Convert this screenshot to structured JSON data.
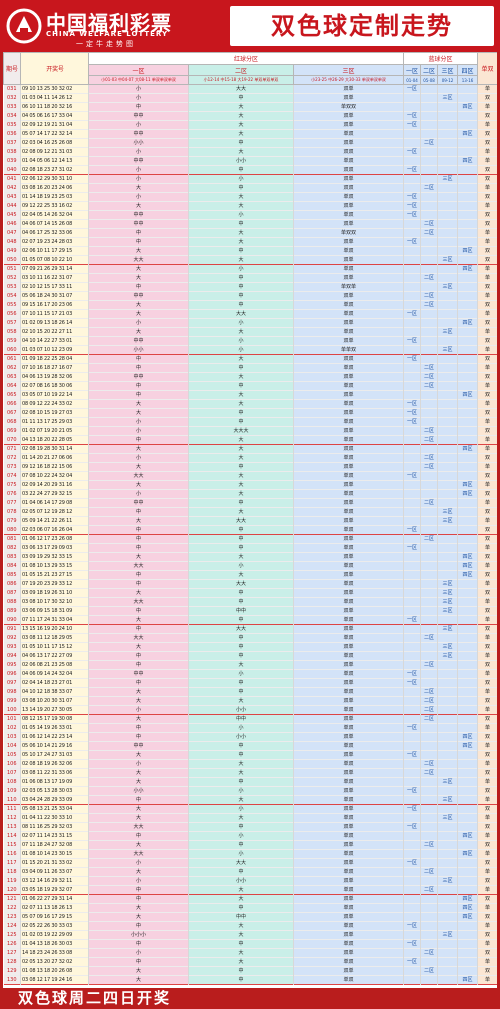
{
  "brand": {
    "name": "中国福利彩票",
    "en": "CHINA WELFARE LOTTERY",
    "slogan": "一定牛走势图"
  },
  "title": "双色球定制走势",
  "table": {
    "col_period": "期号",
    "col_draw": "开奖号",
    "red_group": "红球分区",
    "blue_group": "蓝球分区",
    "zone1": "一区",
    "zone2": "二区",
    "zone3": "三区",
    "oe": "单双",
    "sub1": "小01-03 中04-07 大08-11 单双单双单双",
    "sub2": "小12-14 中15-18 大19-22 单双单双单双",
    "sub3": "小23-25 中26-29 大30-33 单双单双单双",
    "blue_zones": [
      "一区",
      "二区",
      "三区",
      "四区"
    ],
    "blue_ranges": [
      "01-04",
      "05-08",
      "09-12",
      "13-16"
    ],
    "rows": [
      {
        "p": "031",
        "d": "09 10 13 25 30 32 02",
        "z1": "小",
        "z2": "大大",
        "z3": "双单",
        "b": "单"
      },
      {
        "p": "032",
        "d": "01 03 04 11 14 26 12",
        "z1": "小",
        "z2": "中",
        "z3": "双单",
        "b": "双"
      },
      {
        "p": "033",
        "d": "06 10 11 18 20 32 16",
        "z1": "中",
        "z2": "大",
        "z3": "单双双",
        "b": "单"
      },
      {
        "p": "034",
        "d": "04 05 06 16 17 33 04",
        "z1": "中中",
        "z2": "大",
        "z3": "双单",
        "b": "双"
      },
      {
        "p": "035",
        "d": "02 09 12 19 21 31 04",
        "z1": "小",
        "z2": "大",
        "z3": "双单",
        "b": "单"
      },
      {
        "p": "036",
        "d": "05 07 14 17 22 32 14",
        "z1": "中中",
        "z2": "大",
        "z3": "单双",
        "b": "双"
      },
      {
        "p": "037",
        "d": "02 03 04 16 25 26 08",
        "z1": "小小",
        "z2": "中",
        "z3": "双单",
        "b": "双"
      },
      {
        "p": "038",
        "d": "02 08 09 12 21 31 03",
        "z1": "小",
        "z2": "大",
        "z3": "双双",
        "b": "单"
      },
      {
        "p": "039",
        "d": "01 04 05 06 12 14 13",
        "z1": "中中",
        "z2": "小小",
        "z3": "单双",
        "b": "单"
      },
      {
        "p": "040",
        "d": "02 08 18 23 27 31 02",
        "z1": "小",
        "z2": "中",
        "z3": "双双",
        "b": "双"
      },
      {
        "p": "041",
        "d": "02 06 12 29 30 31 10",
        "z1": "小",
        "z2": "小",
        "z3": "双单",
        "b": "双"
      },
      {
        "p": "042",
        "d": "03 08 16 20 23 24 06",
        "z1": "大",
        "z2": "中",
        "z3": "双双",
        "b": "单"
      },
      {
        "p": "043",
        "d": "01 14 18 19 23 25 03",
        "z1": "小",
        "z2": "大",
        "z3": "单双",
        "b": "双"
      },
      {
        "p": "044",
        "d": "09 12 22 25 33 16 02",
        "z1": "大",
        "z2": "大",
        "z3": "双单",
        "b": "单"
      },
      {
        "p": "045",
        "d": "02 04 05 14 26 32 04",
        "z1": "中中",
        "z2": "小",
        "z3": "单双",
        "b": "双"
      },
      {
        "p": "046",
        "d": "04 06 07 14 15 26 08",
        "z1": "中中",
        "z2": "中",
        "z3": "双单",
        "b": "双"
      },
      {
        "p": "047",
        "d": "04 06 17 25 32 33 06",
        "z1": "中",
        "z2": "大",
        "z3": "单双双",
        "b": "单"
      },
      {
        "p": "048",
        "d": "02 07 19 23 24 28 03",
        "z1": "中",
        "z2": "大",
        "z3": "双单",
        "b": "单"
      },
      {
        "p": "049",
        "d": "02 06 10 11 17 29 15",
        "z1": "大",
        "z2": "中",
        "z3": "单双",
        "b": "双"
      },
      {
        "p": "050",
        "d": "01 05 07 08 10 22 10",
        "z1": "大大",
        "z2": "大",
        "z3": "双单",
        "b": "双"
      },
      {
        "p": "051",
        "d": "07 09 21 26 29 31 14",
        "z1": "大",
        "z2": "小",
        "z3": "单双",
        "b": "单"
      },
      {
        "p": "052",
        "d": "03 10 11 16 22 31 07",
        "z1": "大",
        "z2": "中",
        "z3": "双单",
        "b": "单"
      },
      {
        "p": "053",
        "d": "02 10 12 15 17 33 11",
        "z1": "中",
        "z2": "中",
        "z3": "单双单",
        "b": "双"
      },
      {
        "p": "054",
        "d": "05 06 18 24 30 31 07",
        "z1": "中中",
        "z2": "中",
        "z3": "双单",
        "b": "单"
      },
      {
        "p": "055",
        "d": "09 15 16 17 20 23 06",
        "z1": "大",
        "z2": "中",
        "z3": "单双",
        "b": "双"
      },
      {
        "p": "056",
        "d": "07 10 11 15 17 21 03",
        "z1": "大",
        "z2": "大大",
        "z3": "单双",
        "b": "单"
      },
      {
        "p": "057",
        "d": "01 02 09 13 18 26 14",
        "z1": "小",
        "z2": "小",
        "z3": "双单",
        "b": "双"
      },
      {
        "p": "058",
        "d": "02 10 15 20 22 27 11",
        "z1": "大",
        "z2": "大",
        "z3": "单双",
        "b": "单"
      },
      {
        "p": "059",
        "d": "04 10 14 22 27 33 01",
        "z1": "中中",
        "z2": "小",
        "z3": "双单",
        "b": "双"
      },
      {
        "p": "060",
        "d": "01 03 07 10 12 23 09",
        "z1": "小小",
        "z2": "小",
        "z3": "单单双",
        "b": "单"
      },
      {
        "p": "061",
        "d": "01 09 18 22 25 28 04",
        "z1": "中",
        "z2": "大",
        "z3": "双双",
        "b": "双"
      },
      {
        "p": "062",
        "d": "07 10 16 18 27 16 07",
        "z1": "中",
        "z2": "中",
        "z3": "单双",
        "b": "单"
      },
      {
        "p": "063",
        "d": "04 06 13 19 28 32 06",
        "z1": "中中",
        "z2": "大",
        "z3": "双单",
        "b": "双"
      },
      {
        "p": "064",
        "d": "02 07 08 16 18 30 06",
        "z1": "中",
        "z2": "中",
        "z3": "单双",
        "b": "单"
      },
      {
        "p": "065",
        "d": "03 05 07 10 19 22 14",
        "z1": "中",
        "z2": "大",
        "z3": "双单",
        "b": "双"
      },
      {
        "p": "066",
        "d": "08 09 12 22 24 33 02",
        "z1": "大",
        "z2": "大",
        "z3": "单双",
        "b": "单"
      },
      {
        "p": "067",
        "d": "02 08 10 15 19 27 03",
        "z1": "大",
        "z2": "中",
        "z3": "双单",
        "b": "双"
      },
      {
        "p": "068",
        "d": "01 11 13 17 25 29 03",
        "z1": "小",
        "z2": "中",
        "z3": "单双",
        "b": "单"
      },
      {
        "p": "069",
        "d": "01 02 07 19 20 21 05",
        "z1": "小",
        "z2": "大大大",
        "z3": "双单",
        "b": "双"
      },
      {
        "p": "070",
        "d": "04 13 18 20 22 28 05",
        "z1": "中",
        "z2": "大",
        "z3": "单双",
        "b": "单"
      },
      {
        "p": "071",
        "d": "02 08 19 28 30 31 14",
        "z1": "大",
        "z2": "大",
        "z3": "双双",
        "b": "单"
      },
      {
        "p": "072",
        "d": "01 14 20 21 27 06 06",
        "z1": "小",
        "z2": "大",
        "z3": "单双",
        "b": "双"
      },
      {
        "p": "073",
        "d": "09 12 16 18 22 15 06",
        "z1": "大",
        "z2": "中",
        "z3": "双单",
        "b": "单"
      },
      {
        "p": "074",
        "d": "07 08 10 22 24 32 04",
        "z1": "大大",
        "z2": "大",
        "z3": "单双",
        "b": "双"
      },
      {
        "p": "075",
        "d": "02 09 14 20 29 31 16",
        "z1": "大",
        "z2": "大",
        "z3": "双单",
        "b": "单"
      },
      {
        "p": "076",
        "d": "03 22 24 27 29 32 15",
        "z1": "小",
        "z2": "大",
        "z3": "单双",
        "b": "双"
      },
      {
        "p": "077",
        "d": "01 04 06 14 17 29 08",
        "z1": "中中",
        "z2": "中",
        "z3": "双单",
        "b": "单"
      },
      {
        "p": "078",
        "d": "02 05 07 12 19 28 12",
        "z1": "中",
        "z2": "大",
        "z3": "单双",
        "b": "双"
      },
      {
        "p": "079",
        "d": "05 09 14 21 22 26 11",
        "z1": "大",
        "z2": "大大",
        "z3": "双单",
        "b": "单"
      },
      {
        "p": "080",
        "d": "02 03 06 07 16 26 04",
        "z1": "中",
        "z2": "中",
        "z3": "单双",
        "b": "双"
      },
      {
        "p": "081",
        "d": "01 06 12 17 23 26 08",
        "z1": "中",
        "z2": "中",
        "z3": "双单",
        "b": "双"
      },
      {
        "p": "082",
        "d": "03 06 13 17 29 09 03",
        "z1": "中",
        "z2": "中",
        "z3": "单双",
        "b": "单"
      },
      {
        "p": "083",
        "d": "03 09 19 29 32 33 15",
        "z1": "大",
        "z2": "大",
        "z3": "双单",
        "b": "双"
      },
      {
        "p": "084",
        "d": "01 08 10 13 29 33 15",
        "z1": "大大",
        "z2": "小",
        "z3": "单双",
        "b": "单"
      },
      {
        "p": "085",
        "d": "01 05 15 21 23 27 15",
        "z1": "中",
        "z2": "大",
        "z3": "双单",
        "b": "双"
      },
      {
        "p": "086",
        "d": "07 19 20 23 29 33 12",
        "z1": "中",
        "z2": "大大",
        "z3": "单双",
        "b": "单"
      },
      {
        "p": "087",
        "d": "03 09 18 19 26 31 10",
        "z1": "大",
        "z2": "中",
        "z3": "双单",
        "b": "双"
      },
      {
        "p": "088",
        "d": "03 08 10 17 30 32 10",
        "z1": "大大",
        "z2": "中",
        "z3": "单双",
        "b": "单"
      },
      {
        "p": "089",
        "d": "03 06 09 15 18 31 09",
        "z1": "中",
        "z2": "中中",
        "z3": "双单",
        "b": "双"
      },
      {
        "p": "090",
        "d": "07 11 17 24 31 33 04",
        "z1": "大",
        "z2": "中",
        "z3": "单双",
        "b": "单"
      },
      {
        "p": "091",
        "d": "13 15 16 19 20 24 10",
        "z1": "中",
        "z2": "大大",
        "z3": "双单",
        "b": "双"
      },
      {
        "p": "092",
        "d": "03 08 11 12 18 29 05",
        "z1": "大大",
        "z2": "中",
        "z3": "单双",
        "b": "单"
      },
      {
        "p": "093",
        "d": "01 05 10 11 17 15 12",
        "z1": "大",
        "z2": "中",
        "z3": "双单",
        "b": "双"
      },
      {
        "p": "094",
        "d": "04 06 13 17 22 27 09",
        "z1": "中",
        "z2": "中",
        "z3": "单双",
        "b": "单"
      },
      {
        "p": "095",
        "d": "02 06 08 21 23 25 08",
        "z1": "中",
        "z2": "大",
        "z3": "双单",
        "b": "双"
      },
      {
        "p": "096",
        "d": "04 06 09 14 24 32 04",
        "z1": "中中",
        "z2": "小",
        "z3": "单双",
        "b": "单"
      },
      {
        "p": "097",
        "d": "02 04 14 18 23 27 01",
        "z1": "中",
        "z2": "中",
        "z3": "双单",
        "b": "双"
      },
      {
        "p": "098",
        "d": "04 10 12 18 38 33 07",
        "z1": "大",
        "z2": "中",
        "z3": "单双",
        "b": "单"
      },
      {
        "p": "099",
        "d": "03 08 10 20 30 31 07",
        "z1": "大",
        "z2": "大",
        "z3": "双单",
        "b": "双"
      },
      {
        "p": "100",
        "d": "13 14 19 20 27 30 05",
        "z1": "小",
        "z2": "小小",
        "z3": "单双",
        "b": "单"
      },
      {
        "p": "101",
        "d": "08 12 15 17 19 30 08",
        "z1": "大",
        "z2": "中中",
        "z3": "双单",
        "b": "双"
      },
      {
        "p": "102",
        "d": "01 05 14 19 26 33 01",
        "z1": "中",
        "z2": "小",
        "z3": "单双",
        "b": "单"
      },
      {
        "p": "103",
        "d": "01 06 12 14 22 23 14",
        "z1": "中",
        "z2": "小小",
        "z3": "双单",
        "b": "双"
      },
      {
        "p": "104",
        "d": "05 06 10 14 21 29 16",
        "z1": "中中",
        "z2": "中",
        "z3": "单双",
        "b": "单"
      },
      {
        "p": "105",
        "d": "05 10 17 24 27 31 03",
        "z1": "大",
        "z2": "中",
        "z3": "双单",
        "b": "双"
      },
      {
        "p": "106",
        "d": "02 08 18 19 26 32 06",
        "z1": "小",
        "z2": "大",
        "z3": "单双",
        "b": "单"
      },
      {
        "p": "107",
        "d": "03 08 11 22 31 33 06",
        "z1": "大",
        "z2": "大",
        "z3": "双单",
        "b": "双"
      },
      {
        "p": "108",
        "d": "01 06 08 13 17 19 09",
        "z1": "大",
        "z2": "中",
        "z3": "单双",
        "b": "单"
      },
      {
        "p": "109",
        "d": "02 03 05 13 28 30 03",
        "z1": "小小",
        "z2": "小",
        "z3": "双单",
        "b": "双"
      },
      {
        "p": "110",
        "d": "03 04 24 28 29 33 09",
        "z1": "中",
        "z2": "大",
        "z3": "单双",
        "b": "单"
      },
      {
        "p": "111",
        "d": "05 08 13 21 25 33 04",
        "z1": "大",
        "z2": "小",
        "z3": "双单",
        "b": "双"
      },
      {
        "p": "112",
        "d": "01 04 11 22 30 33 10",
        "z1": "大",
        "z2": "大",
        "z3": "单双",
        "b": "单"
      },
      {
        "p": "113",
        "d": "08 11 16 25 29 32 03",
        "z1": "大大",
        "z2": "中",
        "z3": "双单",
        "b": "双"
      },
      {
        "p": "114",
        "d": "02 07 11 14 23 31 15",
        "z1": "中",
        "z2": "小",
        "z3": "单双",
        "b": "单"
      },
      {
        "p": "115",
        "d": "07 11 18 24 27 32 08",
        "z1": "大",
        "z2": "中",
        "z3": "双单",
        "b": "双"
      },
      {
        "p": "116",
        "d": "01 08 10 14 23 30 15",
        "z1": "大大",
        "z2": "小",
        "z3": "单双",
        "b": "单"
      },
      {
        "p": "117",
        "d": "01 15 20 21 31 33 02",
        "z1": "小",
        "z2": "大大",
        "z3": "双单",
        "b": "双"
      },
      {
        "p": "118",
        "d": "03 04 09 11 26 33 07",
        "z1": "大",
        "z2": "中",
        "z3": "单双",
        "b": "单"
      },
      {
        "p": "119",
        "d": "03 12 14 16 29 32 11",
        "z1": "小",
        "z2": "小小",
        "z3": "双单",
        "b": "双"
      },
      {
        "p": "120",
        "d": "03 05 18 19 29 32 07",
        "z1": "中",
        "z2": "大",
        "z3": "单双",
        "b": "单"
      },
      {
        "p": "121",
        "d": "01 06 22 27 29 31 14",
        "z1": "中",
        "z2": "大",
        "z3": "双单",
        "b": "双"
      },
      {
        "p": "122",
        "d": "02 07 11 13 18 26 13",
        "z1": "大",
        "z2": "中",
        "z3": "单双",
        "b": "单"
      },
      {
        "p": "123",
        "d": "05 07 09 16 17 29 15",
        "z1": "大",
        "z2": "中中",
        "z3": "双单",
        "b": "双"
      },
      {
        "p": "124",
        "d": "02 05 22 26 30 33 03",
        "z1": "中",
        "z2": "大",
        "z3": "单双",
        "b": "单"
      },
      {
        "p": "125",
        "d": "01 02 03 19 22 29 09",
        "z1": "小小小",
        "z2": "大",
        "z3": "双单",
        "b": "双"
      },
      {
        "p": "126",
        "d": "01 04 13 18 26 30 03",
        "z1": "中",
        "z2": "中",
        "z3": "单双",
        "b": "单"
      },
      {
        "p": "127",
        "d": "14 18 23 24 26 33 08",
        "z1": "小",
        "z2": "大",
        "z3": "双单",
        "b": "双"
      },
      {
        "p": "128",
        "d": "02 05 13 20 27 32 02",
        "z1": "中",
        "z2": "大",
        "z3": "单双",
        "b": "单"
      },
      {
        "p": "129",
        "d": "01 08 13 18 20 26 08",
        "z1": "大",
        "z2": "中",
        "z3": "双单",
        "b": "双"
      },
      {
        "p": "130",
        "d": "03 08 12 17 19 24 16",
        "z1": "大",
        "z2": "中",
        "z3": "单双",
        "b": "单"
      }
    ]
  },
  "footer": "双色球周二四日开奖"
}
